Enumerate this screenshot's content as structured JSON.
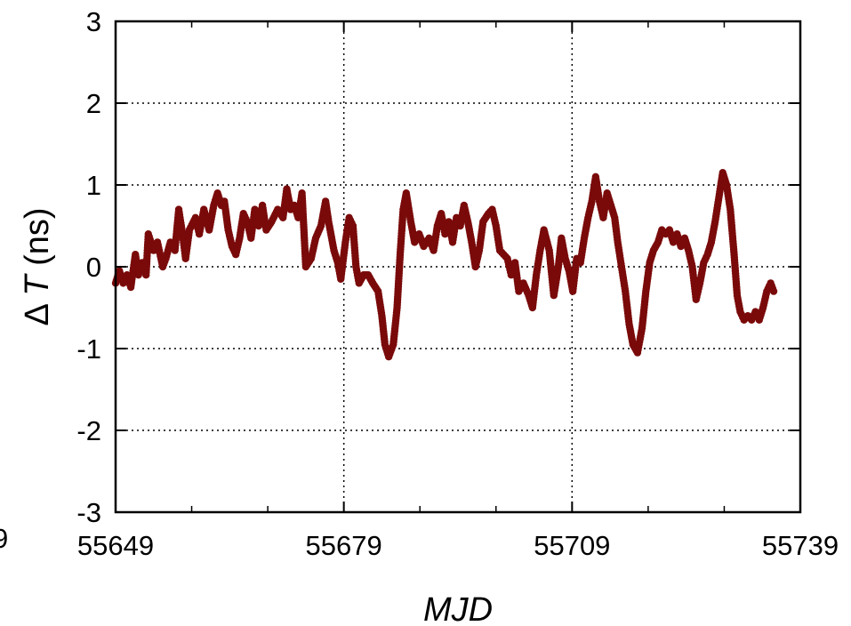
{
  "chart_data": {
    "type": "scatter",
    "title": "",
    "xlabel": "MJD",
    "ylabel_prefix": "Δ",
    "ylabel_symbol": "T",
    "ylabel_unit": " (ns)",
    "xlim": [
      55649,
      55739
    ],
    "ylim": [
      -3,
      3
    ],
    "xticks": [
      55649,
      55679,
      55709,
      55739
    ],
    "xtick_labels": [
      "55649",
      "55679",
      "55709",
      "55739"
    ],
    "yticks": [
      -3,
      -2,
      -1,
      0,
      1,
      2,
      3
    ],
    "ytick_labels": [
      "-3",
      "-2",
      "-1",
      "0",
      "1",
      "2",
      "3"
    ],
    "x_minor_step": 10,
    "grid": true,
    "grid_style": "dotted",
    "legend": "none",
    "marker_color": "#7a0a0a",
    "cut_off_label": "9",
    "series": [
      {
        "points": [
          [
            55649.0,
            -0.2
          ],
          [
            55649.5,
            -0.05
          ],
          [
            55650.0,
            -0.2
          ],
          [
            55650.5,
            -0.1
          ],
          [
            55651.0,
            -0.25
          ],
          [
            55651.6,
            0.15
          ],
          [
            55652.0,
            -0.1
          ],
          [
            55652.5,
            0.05
          ],
          [
            55653.0,
            -0.1
          ],
          [
            55653.3,
            0.4
          ],
          [
            55654.0,
            0.2
          ],
          [
            55654.5,
            0.3
          ],
          [
            55655.2,
            0.0
          ],
          [
            55655.6,
            0.1
          ],
          [
            55656.2,
            0.3
          ],
          [
            55656.8,
            0.2
          ],
          [
            55657.3,
            0.7
          ],
          [
            55657.8,
            0.4
          ],
          [
            55658.2,
            0.1
          ],
          [
            55658.7,
            0.45
          ],
          [
            55659.5,
            0.6
          ],
          [
            55660.0,
            0.4
          ],
          [
            55660.6,
            0.7
          ],
          [
            55661.3,
            0.45
          ],
          [
            55661.9,
            0.75
          ],
          [
            55662.4,
            0.9
          ],
          [
            55662.9,
            0.75
          ],
          [
            55663.3,
            0.8
          ],
          [
            55663.8,
            0.45
          ],
          [
            55664.3,
            0.25
          ],
          [
            55664.8,
            0.15
          ],
          [
            55665.3,
            0.35
          ],
          [
            55665.8,
            0.65
          ],
          [
            55666.3,
            0.55
          ],
          [
            55666.8,
            0.35
          ],
          [
            55667.3,
            0.7
          ],
          [
            55667.8,
            0.5
          ],
          [
            55668.3,
            0.75
          ],
          [
            55668.8,
            0.45
          ],
          [
            55669.5,
            0.55
          ],
          [
            55670.3,
            0.7
          ],
          [
            55671.0,
            0.6
          ],
          [
            55671.5,
            0.95
          ],
          [
            55672.0,
            0.7
          ],
          [
            55672.5,
            0.75
          ],
          [
            55673.0,
            0.6
          ],
          [
            55673.5,
            0.9
          ],
          [
            55674.0,
            0.0
          ],
          [
            55674.7,
            0.1
          ],
          [
            55675.3,
            0.35
          ],
          [
            55676.0,
            0.5
          ],
          [
            55676.6,
            0.8
          ],
          [
            55677.0,
            0.55
          ],
          [
            55677.7,
            0.2
          ],
          [
            55678.2,
            0.05
          ],
          [
            55678.6,
            -0.15
          ],
          [
            55679.2,
            0.3
          ],
          [
            55679.7,
            0.6
          ],
          [
            55680.2,
            0.5
          ],
          [
            55680.6,
            0.0
          ],
          [
            55681.0,
            -0.2
          ],
          [
            55681.6,
            -0.1
          ],
          [
            55682.2,
            -0.1
          ],
          [
            55682.8,
            -0.2
          ],
          [
            55683.5,
            -0.3
          ],
          [
            55684.0,
            -0.6
          ],
          [
            55684.4,
            -0.95
          ],
          [
            55684.9,
            -1.1
          ],
          [
            55685.5,
            -0.95
          ],
          [
            55686.0,
            -0.5
          ],
          [
            55686.4,
            0.15
          ],
          [
            55686.8,
            0.7
          ],
          [
            55687.2,
            0.9
          ],
          [
            55687.8,
            0.55
          ],
          [
            55688.3,
            0.3
          ],
          [
            55688.9,
            0.4
          ],
          [
            55689.5,
            0.25
          ],
          [
            55690.2,
            0.35
          ],
          [
            55690.8,
            0.2
          ],
          [
            55691.3,
            0.5
          ],
          [
            55691.8,
            0.65
          ],
          [
            55692.3,
            0.4
          ],
          [
            55692.8,
            0.55
          ],
          [
            55693.3,
            0.3
          ],
          [
            55693.8,
            0.6
          ],
          [
            55694.3,
            0.5
          ],
          [
            55694.8,
            0.75
          ],
          [
            55695.3,
            0.55
          ],
          [
            55695.8,
            0.3
          ],
          [
            55696.3,
            0.0
          ],
          [
            55696.8,
            0.2
          ],
          [
            55697.3,
            0.55
          ],
          [
            55698.0,
            0.65
          ],
          [
            55698.5,
            0.7
          ],
          [
            55699.0,
            0.5
          ],
          [
            55699.5,
            0.2
          ],
          [
            55700.0,
            0.15
          ],
          [
            55700.5,
            0.1
          ],
          [
            55701.0,
            -0.1
          ],
          [
            55701.5,
            0.05
          ],
          [
            55702.0,
            -0.3
          ],
          [
            55702.6,
            -0.2
          ],
          [
            55703.3,
            -0.35
          ],
          [
            55703.8,
            -0.5
          ],
          [
            55704.3,
            -0.1
          ],
          [
            55704.8,
            0.2
          ],
          [
            55705.3,
            0.45
          ],
          [
            55706.0,
            0.2
          ],
          [
            55706.6,
            -0.35
          ],
          [
            55707.2,
            0.0
          ],
          [
            55707.6,
            0.35
          ],
          [
            55708.1,
            0.1
          ],
          [
            55708.6,
            -0.05
          ],
          [
            55709.1,
            -0.3
          ],
          [
            55709.6,
            0.1
          ],
          [
            55710.1,
            0.05
          ],
          [
            55710.6,
            0.35
          ],
          [
            55711.1,
            0.6
          ],
          [
            55711.6,
            0.8
          ],
          [
            55712.1,
            1.1
          ],
          [
            55712.6,
            0.8
          ],
          [
            55713.1,
            0.6
          ],
          [
            55713.6,
            0.9
          ],
          [
            55714.1,
            0.75
          ],
          [
            55714.6,
            0.6
          ],
          [
            55715.0,
            0.3
          ],
          [
            55715.5,
            0.0
          ],
          [
            55716.0,
            -0.3
          ],
          [
            55716.5,
            -0.7
          ],
          [
            55717.0,
            -0.95
          ],
          [
            55717.6,
            -1.05
          ],
          [
            55718.2,
            -0.75
          ],
          [
            55718.7,
            -0.3
          ],
          [
            55719.2,
            0.05
          ],
          [
            55719.7,
            0.2
          ],
          [
            55720.3,
            0.3
          ],
          [
            55720.8,
            0.45
          ],
          [
            55721.3,
            0.4
          ],
          [
            55721.8,
            0.45
          ],
          [
            55722.3,
            0.3
          ],
          [
            55722.8,
            0.4
          ],
          [
            55723.3,
            0.25
          ],
          [
            55723.8,
            0.35
          ],
          [
            55724.3,
            0.2
          ],
          [
            55724.8,
            0.0
          ],
          [
            55725.3,
            -0.4
          ],
          [
            55725.8,
            -0.2
          ],
          [
            55726.3,
            0.05
          ],
          [
            55726.8,
            0.15
          ],
          [
            55727.3,
            0.3
          ],
          [
            55727.8,
            0.55
          ],
          [
            55728.3,
            0.85
          ],
          [
            55728.8,
            1.15
          ],
          [
            55729.3,
            1.0
          ],
          [
            55729.8,
            0.7
          ],
          [
            55730.3,
            0.15
          ],
          [
            55730.7,
            -0.35
          ],
          [
            55731.1,
            -0.55
          ],
          [
            55731.6,
            -0.65
          ],
          [
            55732.1,
            -0.6
          ],
          [
            55732.6,
            -0.65
          ],
          [
            55733.1,
            -0.55
          ],
          [
            55733.6,
            -0.65
          ],
          [
            55734.1,
            -0.5
          ],
          [
            55734.6,
            -0.3
          ],
          [
            55735.1,
            -0.2
          ],
          [
            55735.5,
            -0.3
          ]
        ]
      }
    ]
  }
}
